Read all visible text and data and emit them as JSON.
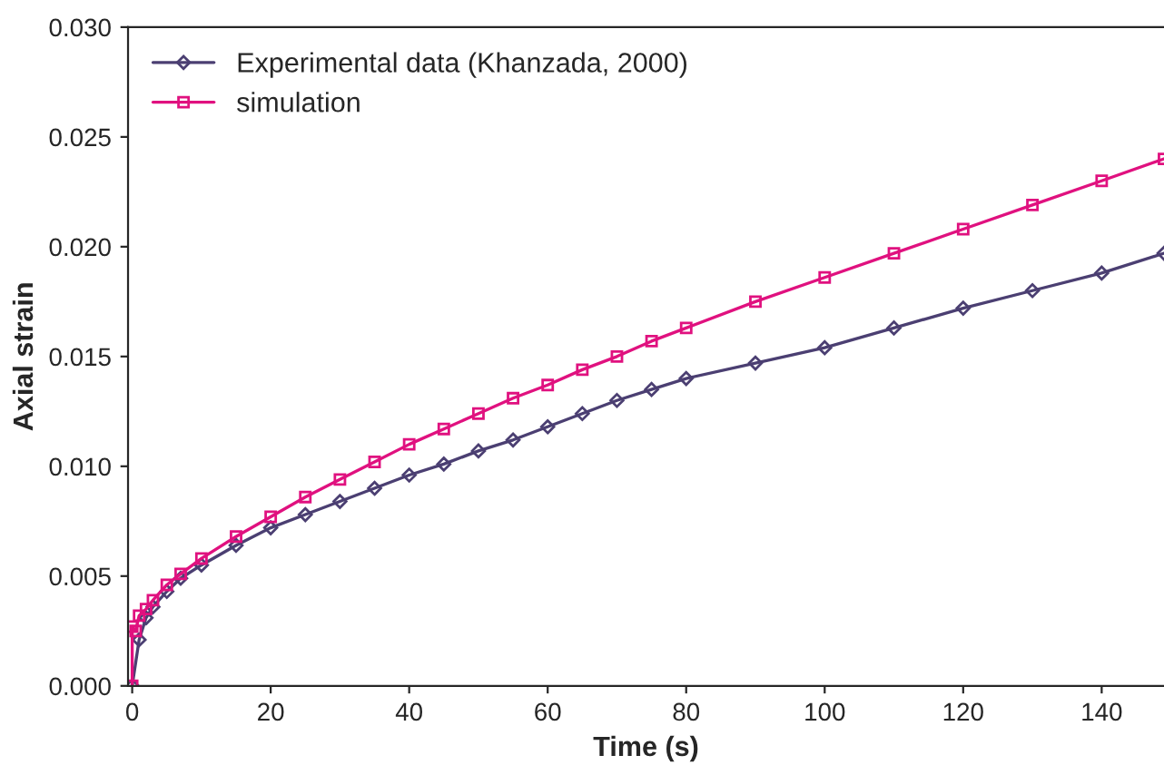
{
  "chart_data": {
    "type": "line",
    "xlabel": "Time (s)",
    "ylabel": "Axial strain",
    "xlim": [
      -0.6,
      149
    ],
    "xticks": [
      0,
      20,
      40,
      60,
      80,
      100,
      120,
      140
    ],
    "ylim": [
      0,
      0.03
    ],
    "yticks": [
      {
        "value": 0,
        "label": "0.000"
      },
      {
        "value": 0.005,
        "label": "0.005"
      },
      {
        "value": 0.01,
        "label": "0.010"
      },
      {
        "value": 0.015,
        "label": "0.015"
      },
      {
        "value": 0.02,
        "label": "0.020"
      },
      {
        "value": 0.025,
        "label": "0.025"
      },
      {
        "value": 0.03,
        "label": "0.030"
      }
    ],
    "legend": "top left",
    "grid": false,
    "series": [
      {
        "name": "Experimental data (Khanzada, 2000)",
        "color": "#4b3f72",
        "marker": "diamond",
        "x": [
          0,
          1,
          2,
          3,
          5,
          7,
          10,
          15,
          20,
          25,
          30,
          35,
          40,
          45,
          50,
          55,
          60,
          65,
          70,
          75,
          80,
          90,
          100,
          110,
          120,
          130,
          140,
          149
        ],
        "values": [
          0,
          0.0021,
          0.0031,
          0.0036,
          0.0043,
          0.0049,
          0.0055,
          0.0064,
          0.0072,
          0.0078,
          0.0084,
          0.009,
          0.0096,
          0.0101,
          0.0107,
          0.0112,
          0.0118,
          0.0124,
          0.013,
          0.0135,
          0.014,
          0.0147,
          0.0154,
          0.0163,
          0.0172,
          0.018,
          0.0188,
          0.0197
        ]
      },
      {
        "name": "simulation",
        "color": "#e0117f",
        "marker": "square",
        "x": [
          0,
          0,
          0.5,
          1,
          2,
          3,
          5,
          7,
          10,
          15,
          20,
          25,
          30,
          35,
          40,
          45,
          50,
          55,
          60,
          65,
          70,
          75,
          80,
          90,
          100,
          110,
          120,
          130,
          140,
          149
        ],
        "values": [
          0,
          0.0027,
          0.0025,
          0.0032,
          0.0035,
          0.0039,
          0.0046,
          0.0051,
          0.0058,
          0.0068,
          0.0077,
          0.0086,
          0.0094,
          0.0102,
          0.011,
          0.0117,
          0.0124,
          0.0131,
          0.0137,
          0.0144,
          0.015,
          0.0157,
          0.0163,
          0.0175,
          0.0186,
          0.0197,
          0.0208,
          0.0219,
          0.023,
          0.024
        ]
      }
    ]
  }
}
